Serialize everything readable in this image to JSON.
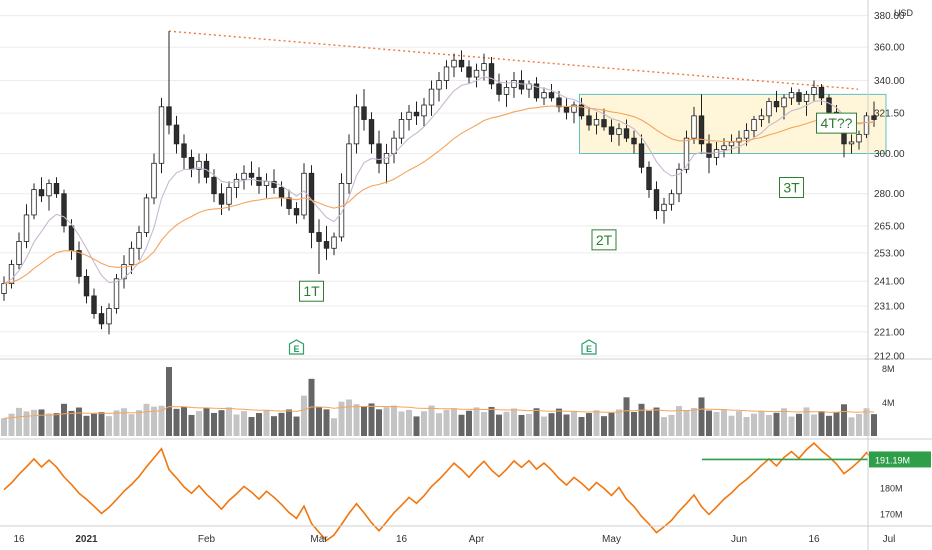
{
  "chart_data": {
    "type": "candlestick",
    "price_axis": {
      "currency": "USD",
      "ticks": [
        "380.00",
        "360.00",
        "340.00",
        "321.50",
        "300.00",
        "280.00",
        "265.00",
        "253.00",
        "241.00",
        "231.00",
        "221.00",
        "212.00"
      ],
      "scale": "log",
      "range": [
        212,
        385
      ]
    },
    "volume_axis": {
      "ticks": [
        "8M",
        "4M"
      ]
    },
    "indicator_axis": {
      "ticks": [
        "180M",
        "170M"
      ],
      "last_label": "191.19M",
      "range": [
        166,
        198
      ]
    },
    "x_axis": {
      "ticks": [
        "16",
        "2021",
        "Feb",
        "Mar",
        "16",
        "Apr",
        "May",
        "Jun",
        "16",
        "Jul"
      ]
    },
    "annotations": [
      "1T",
      "2T",
      "3T",
      "4T??"
    ],
    "earnings_markers": [
      "E",
      "E"
    ],
    "candles": [
      [
        236,
        243,
        233,
        240
      ],
      [
        240,
        250,
        238,
        248
      ],
      [
        248,
        262,
        246,
        258
      ],
      [
        258,
        275,
        255,
        270
      ],
      [
        270,
        285,
        268,
        282
      ],
      [
        282,
        288,
        276,
        279
      ],
      [
        279,
        287,
        272,
        285
      ],
      [
        285,
        288,
        278,
        280
      ],
      [
        280,
        282,
        262,
        265
      ],
      [
        265,
        268,
        250,
        254
      ],
      [
        254,
        258,
        240,
        243
      ],
      [
        243,
        246,
        232,
        235
      ],
      [
        235,
        238,
        226,
        228
      ],
      [
        228,
        231,
        222,
        224
      ],
      [
        224,
        232,
        220,
        230
      ],
      [
        230,
        244,
        228,
        242
      ],
      [
        242,
        252,
        238,
        248
      ],
      [
        248,
        258,
        244,
        255
      ],
      [
        255,
        265,
        250,
        262
      ],
      [
        262,
        280,
        260,
        278
      ],
      [
        278,
        300,
        275,
        295
      ],
      [
        295,
        330,
        290,
        325
      ],
      [
        325,
        370,
        310,
        315
      ],
      [
        315,
        320,
        300,
        305
      ],
      [
        305,
        310,
        292,
        298
      ],
      [
        298,
        302,
        288,
        292
      ],
      [
        292,
        300,
        285,
        296
      ],
      [
        296,
        300,
        285,
        288
      ],
      [
        288,
        292,
        276,
        280
      ],
      [
        280,
        285,
        270,
        275
      ],
      [
        275,
        286,
        272,
        283
      ],
      [
        283,
        290,
        278,
        287
      ],
      [
        287,
        294,
        282,
        290
      ],
      [
        290,
        296,
        284,
        288
      ],
      [
        288,
        293,
        280,
        284
      ],
      [
        284,
        290,
        278,
        286
      ],
      [
        286,
        292,
        280,
        283
      ],
      [
        283,
        286,
        274,
        278
      ],
      [
        278,
        282,
        270,
        273
      ],
      [
        273,
        276,
        266,
        270
      ],
      [
        270,
        295,
        268,
        290
      ],
      [
        290,
        294,
        255,
        262
      ],
      [
        262,
        268,
        244,
        258
      ],
      [
        258,
        265,
        250,
        255
      ],
      [
        255,
        262,
        252,
        260
      ],
      [
        260,
        290,
        258,
        285
      ],
      [
        285,
        310,
        280,
        305
      ],
      [
        305,
        332,
        300,
        325
      ],
      [
        325,
        335,
        312,
        318
      ],
      [
        318,
        322,
        300,
        305
      ],
      [
        305,
        312,
        290,
        295
      ],
      [
        295,
        305,
        285,
        300
      ],
      [
        300,
        312,
        295,
        308
      ],
      [
        308,
        322,
        305,
        318
      ],
      [
        318,
        326,
        312,
        322
      ],
      [
        322,
        328,
        315,
        320
      ],
      [
        320,
        330,
        314,
        326
      ],
      [
        326,
        340,
        320,
        335
      ],
      [
        335,
        345,
        328,
        340
      ],
      [
        340,
        352,
        335,
        348
      ],
      [
        348,
        356,
        342,
        352
      ],
      [
        352,
        358,
        345,
        348
      ],
      [
        348,
        352,
        338,
        342
      ],
      [
        342,
        350,
        336,
        346
      ],
      [
        346,
        356,
        340,
        350
      ],
      [
        350,
        354,
        335,
        338
      ],
      [
        338,
        344,
        328,
        332
      ],
      [
        332,
        340,
        325,
        336
      ],
      [
        336,
        345,
        330,
        340
      ],
      [
        340,
        346,
        332,
        335
      ],
      [
        335,
        340,
        330,
        338
      ],
      [
        338,
        342,
        328,
        330
      ],
      [
        330,
        336,
        326,
        333
      ],
      [
        333,
        338,
        328,
        330
      ],
      [
        330,
        334,
        322,
        325
      ],
      [
        325,
        330,
        318,
        322
      ],
      [
        322,
        328,
        316,
        326
      ],
      [
        326,
        330,
        318,
        320
      ],
      [
        320,
        325,
        312,
        315
      ],
      [
        315,
        322,
        310,
        318
      ],
      [
        318,
        324,
        312,
        314
      ],
      [
        314,
        318,
        306,
        310
      ],
      [
        310,
        316,
        304,
        313
      ],
      [
        313,
        318,
        306,
        308
      ],
      [
        308,
        312,
        300,
        305
      ],
      [
        305,
        310,
        290,
        293
      ],
      [
        293,
        296,
        278,
        282
      ],
      [
        282,
        286,
        268,
        272
      ],
      [
        272,
        278,
        266,
        275
      ],
      [
        275,
        282,
        272,
        280
      ],
      [
        280,
        295,
        276,
        292
      ],
      [
        292,
        312,
        290,
        308
      ],
      [
        308,
        325,
        305,
        320
      ],
      [
        320,
        332,
        300,
        305
      ],
      [
        305,
        310,
        290,
        298
      ],
      [
        298,
        306,
        294,
        302
      ],
      [
        302,
        308,
        298,
        304
      ],
      [
        304,
        310,
        300,
        306
      ],
      [
        306,
        312,
        300,
        308
      ],
      [
        308,
        316,
        304,
        312
      ],
      [
        312,
        320,
        308,
        318
      ],
      [
        318,
        324,
        314,
        320
      ],
      [
        320,
        330,
        316,
        328
      ],
      [
        328,
        334,
        322,
        325
      ],
      [
        325,
        332,
        318,
        330
      ],
      [
        330,
        336,
        326,
        333
      ],
      [
        333,
        335,
        326,
        328
      ],
      [
        328,
        334,
        320,
        332
      ],
      [
        332,
        340,
        328,
        336
      ],
      [
        336,
        338,
        326,
        330
      ],
      [
        330,
        332,
        318,
        322
      ],
      [
        322,
        326,
        312,
        316
      ],
      [
        316,
        320,
        298,
        305
      ],
      [
        305,
        310,
        300,
        306
      ],
      [
        306,
        312,
        302,
        310
      ],
      [
        310,
        322,
        308,
        320
      ],
      [
        320,
        328,
        314,
        318
      ]
    ]
  },
  "colors": {
    "up": "#ffffff",
    "down": "#2e2e2e",
    "candle_border": "#222222",
    "trendline": "#f2763b",
    "box_fill": "#fff6d9",
    "box_border": "#5ec0c6",
    "ma_fast": "#c9b8d0",
    "ma_slow": "#f5a35a",
    "indicator": "#f2760e",
    "last_label_bg": "#2e9e48",
    "annot_color": "#2e7d32",
    "volume_light": "#c4c4c4",
    "volume_dark": "#666666",
    "grid": "#ececec"
  },
  "icons": {
    "earnings": "earnings-icon"
  }
}
